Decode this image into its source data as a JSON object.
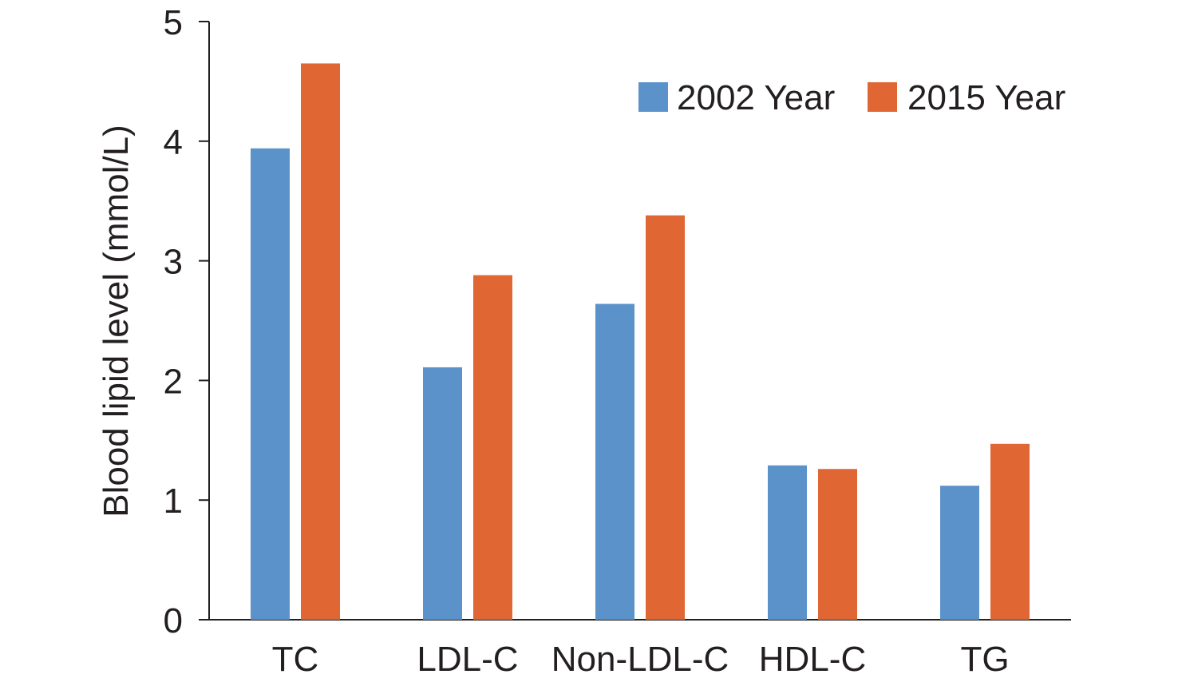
{
  "chart_data": {
    "type": "bar",
    "title": "",
    "xlabel": "",
    "ylabel": "Blood lipid level (mmol/L)",
    "ylim": [
      0,
      5
    ],
    "yticks": [
      0,
      1,
      2,
      3,
      4,
      5
    ],
    "grid": false,
    "legend_position": "top-right",
    "categories": [
      "TC",
      "LDL-C",
      "Non-LDL-C",
      "HDL-C",
      "TG"
    ],
    "series": [
      {
        "name": "2002 Year",
        "color": "#5b92c9",
        "values": [
          3.94,
          2.11,
          2.64,
          1.29,
          1.12
        ]
      },
      {
        "name": "2015 Year",
        "color": "#e06633",
        "values": [
          4.65,
          2.88,
          3.38,
          1.26,
          1.47
        ]
      }
    ]
  }
}
